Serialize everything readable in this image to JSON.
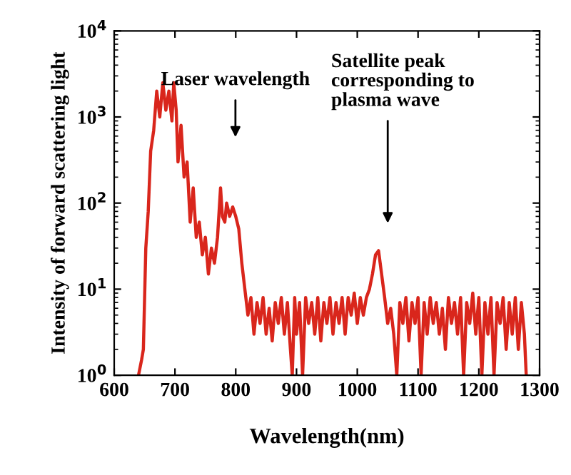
{
  "chart_data": {
    "type": "line",
    "xlabel": "Wavelength(nm)",
    "ylabel": "Intensity of forward scattering light",
    "x": [
      640,
      645,
      648,
      652,
      656,
      660,
      665,
      670,
      675,
      680,
      685,
      690,
      695,
      698,
      702,
      705,
      710,
      715,
      720,
      725,
      730,
      735,
      740,
      745,
      750,
      755,
      760,
      765,
      770,
      775,
      778,
      782,
      785,
      790,
      795,
      800,
      805,
      810,
      815,
      820,
      825,
      830,
      835,
      840,
      845,
      850,
      855,
      860,
      865,
      870,
      875,
      880,
      885,
      890,
      893,
      897,
      900,
      905,
      910,
      915,
      920,
      925,
      930,
      935,
      940,
      945,
      950,
      955,
      960,
      965,
      970,
      975,
      980,
      985,
      990,
      995,
      1000,
      1005,
      1010,
      1015,
      1020,
      1025,
      1030,
      1035,
      1040,
      1045,
      1050,
      1055,
      1060,
      1065,
      1070,
      1075,
      1080,
      1085,
      1090,
      1095,
      1100,
      1105,
      1110,
      1115,
      1120,
      1125,
      1130,
      1135,
      1140,
      1145,
      1150,
      1155,
      1160,
      1165,
      1170,
      1175,
      1180,
      1185,
      1190,
      1195,
      1200,
      1205,
      1210,
      1215,
      1220,
      1225,
      1230,
      1235,
      1240,
      1245,
      1250,
      1255,
      1260,
      1265,
      1270,
      1275,
      1278
    ],
    "series": [
      {
        "color": "#d9261c",
        "values": [
          1,
          1.5,
          2,
          30,
          80,
          400,
          700,
          2000,
          1000,
          2500,
          1200,
          2000,
          900,
          2500,
          1200,
          300,
          800,
          200,
          300,
          60,
          150,
          40,
          60,
          25,
          40,
          15,
          30,
          20,
          40,
          150,
          70,
          60,
          100,
          70,
          90,
          70,
          50,
          20,
          10,
          5,
          8,
          3,
          7,
          4,
          8,
          3,
          6,
          2.5,
          7,
          4,
          8,
          3,
          7,
          2,
          1,
          8,
          3,
          7,
          1,
          8,
          4,
          7,
          3,
          8,
          2.5,
          7,
          4,
          8,
          3,
          7,
          4,
          8,
          3,
          8,
          5,
          9,
          4,
          8,
          5,
          8,
          10,
          15,
          25,
          28,
          15,
          8,
          4,
          6,
          3,
          1,
          7,
          4,
          8,
          2.5,
          7,
          4,
          8,
          1,
          7,
          3,
          8,
          4,
          7,
          3,
          6,
          2,
          8,
          4,
          7,
          3,
          8,
          1,
          7,
          4,
          9,
          3,
          8,
          1,
          7,
          3,
          8,
          1,
          7,
          4,
          8,
          2,
          7,
          3,
          8,
          2,
          7,
          3,
          1
        ]
      }
    ],
    "log": "y",
    "xlim": [
      600,
      1300
    ],
    "xticks": [
      600,
      700,
      800,
      900,
      1000,
      1100,
      1200,
      1300
    ],
    "ylim": [
      1,
      10000
    ],
    "yticks": [
      {
        "value": 1,
        "label": "10$^{0}$"
      },
      {
        "value": 10,
        "label": "10$^{1}$"
      },
      {
        "value": 100,
        "label": "10$^{2}$"
      },
      {
        "value": 1000,
        "label": "10$^{3}$"
      },
      {
        "value": 10000,
        "label": "10$^{4}$"
      }
    ],
    "grid": false,
    "legend": false,
    "annotations": [
      "Laser wavelength",
      "Satellite peak\ncorresponding to\nplasma wave"
    ]
  }
}
